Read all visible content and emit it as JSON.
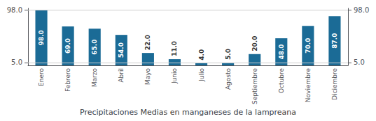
{
  "chart_data": {
    "type": "bar",
    "title": "Precipitaciones Medias en manganeses de la lampreana",
    "categories": [
      "Enero",
      "Febrero",
      "Marzo",
      "Abril",
      "Mayo",
      "Junio",
      "Julio",
      "Agosto",
      "Septiembre",
      "Octubre",
      "Noviembre",
      "Diciembre"
    ],
    "values": [
      98.0,
      69.0,
      65.0,
      54.0,
      22.0,
      11.0,
      4.0,
      5.0,
      20.0,
      48.0,
      70.0,
      87.0
    ],
    "value_labels": [
      "98.0",
      "69.0",
      "65.0",
      "54.0",
      "22.0",
      "11.0",
      "4.0",
      "5.0",
      "20.0",
      "48.0",
      "70.0",
      "87.0"
    ],
    "data_labels": true,
    "color": "#1b6b96",
    "ylim": [
      0,
      101
    ],
    "yticks": [
      {
        "value": 5,
        "label": "5.0"
      },
      {
        "value": 98,
        "label": "98.0"
      }
    ],
    "y2lim": [
      0,
      101
    ],
    "y2ticks": [
      {
        "value": 5,
        "label": "5.0"
      },
      {
        "value": 98,
        "label": "98.0"
      }
    ],
    "grid": true
  }
}
